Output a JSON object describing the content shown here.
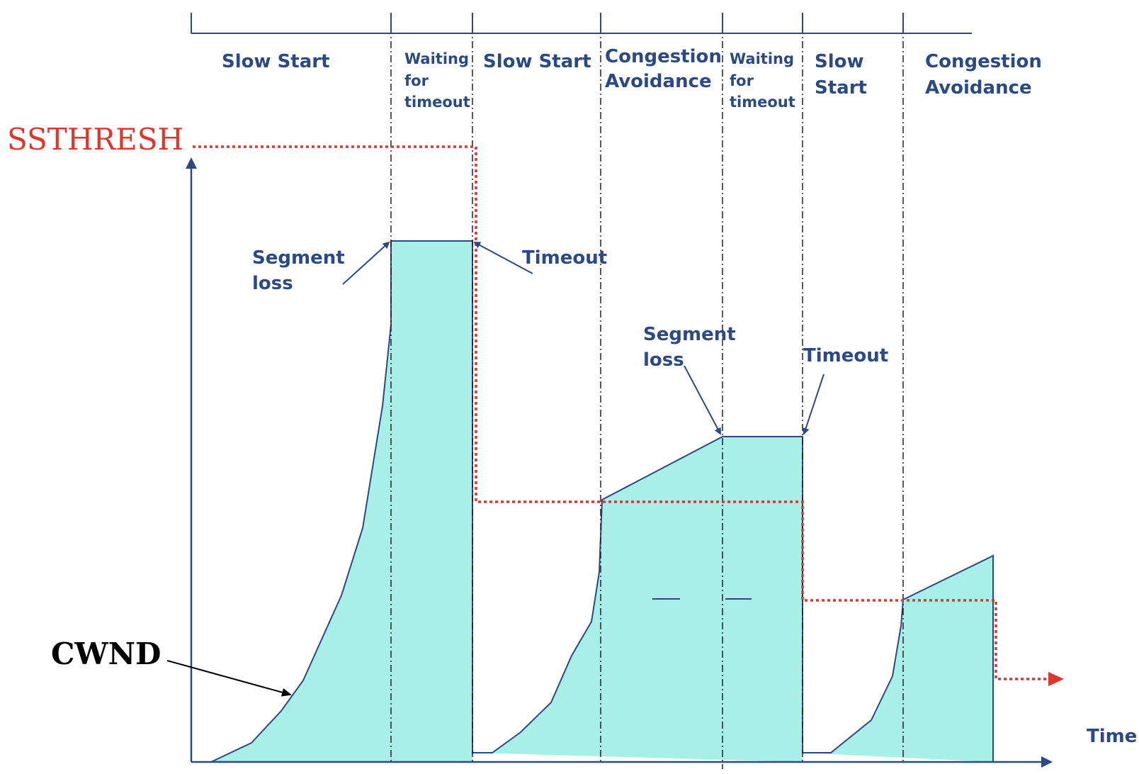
{
  "colors": {
    "axis": "#2b4a85",
    "cwnd_fill": "#a8efe8",
    "cwnd_stroke": "#2b4a85",
    "ssthresh": "#e0352b",
    "divider": "#222222",
    "label_blue": "#2b4a85",
    "ssthresh_label": "#e0352b",
    "cwnd_label": "#000000"
  },
  "phases": [
    {
      "lines": [
        "Slow Start"
      ]
    },
    {
      "lines": [
        "Waiting",
        "for",
        "timeout"
      ]
    },
    {
      "lines": [
        "Slow Start"
      ]
    },
    {
      "lines": [
        "Congestion",
        "Avoidance"
      ]
    },
    {
      "lines": [
        "Waiting",
        "for",
        "timeout"
      ]
    },
    {
      "lines": [
        "Slow",
        "Start"
      ]
    },
    {
      "lines": [
        "Congestion",
        "Avoidance"
      ]
    }
  ],
  "annotations": {
    "segment_loss_1": [
      "Segment",
      "loss"
    ],
    "timeout_1": "Timeout",
    "segment_loss_2": [
      "Segment",
      "loss"
    ],
    "timeout_2": "Timeout"
  },
  "labels": {
    "ssthresh": "SSTHRESH",
    "cwnd": "CWND",
    "time": "Time"
  }
}
